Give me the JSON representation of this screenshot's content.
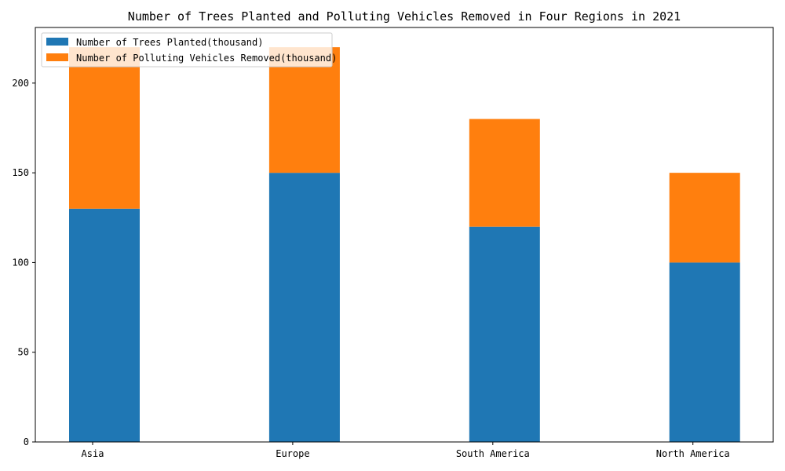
{
  "chart_data": {
    "type": "bar",
    "stacked": true,
    "title": "Number of Trees Planted and Polluting Vehicles Removed in Four Regions in 2021",
    "xlabel": "",
    "ylabel": "",
    "categories": [
      "Asia",
      "Europe",
      "South America",
      "North America"
    ],
    "series": [
      {
        "name": "Number of Trees Planted(thousand)",
        "values": [
          130,
          150,
          120,
          100
        ],
        "color": "#1f77b4"
      },
      {
        "name": "Number of Polluting Vehicles Removed(thousand)",
        "values": [
          90,
          70,
          60,
          50
        ],
        "color": "#ff7f0e"
      }
    ],
    "ylim": [
      0,
      231
    ],
    "yticks": [
      0,
      50,
      100,
      150,
      200
    ],
    "grid": false,
    "legend_position": "top-left"
  }
}
